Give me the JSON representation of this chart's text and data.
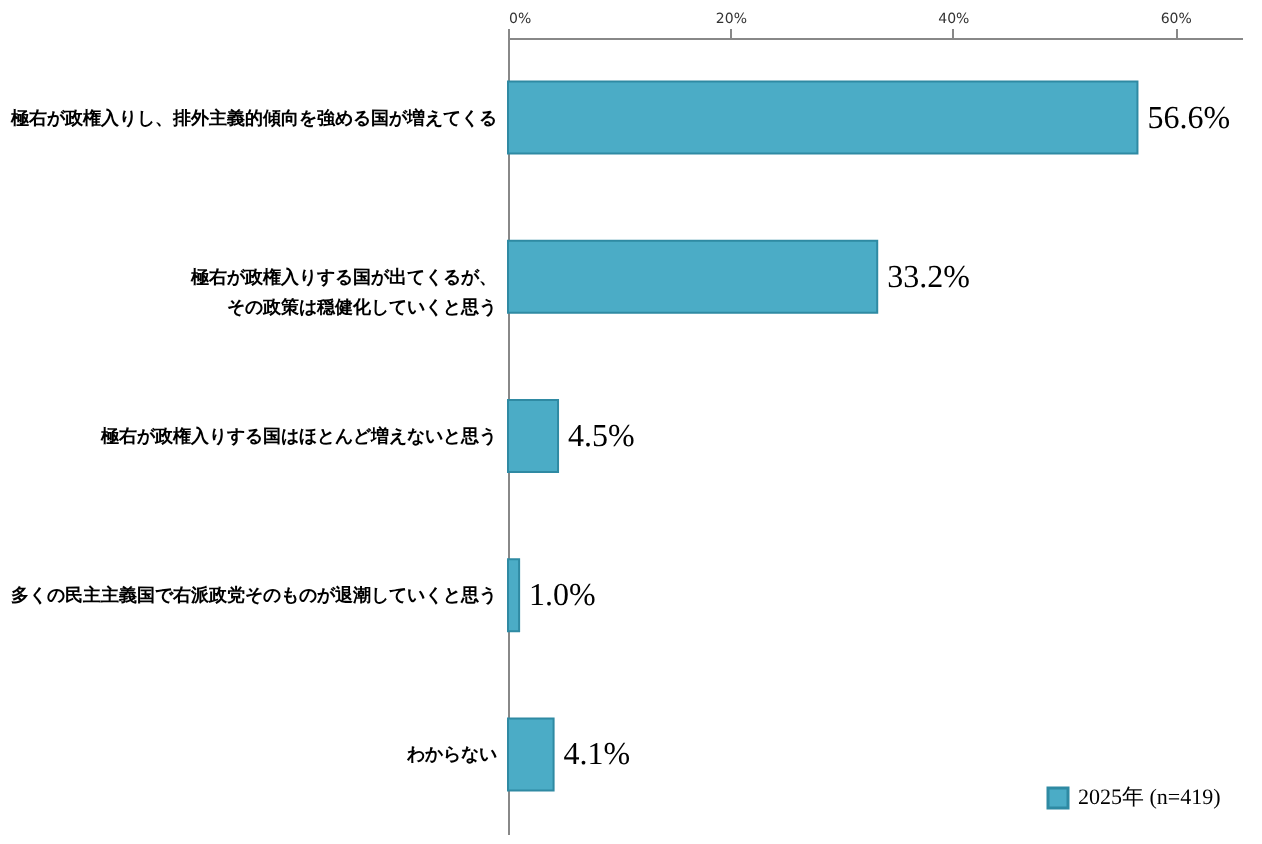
{
  "chart_data": {
    "type": "bar",
    "orientation": "horizontal",
    "categories": [
      "極右が政権入りし、排外主義的傾向を強める国が増えてくる",
      "極右が政権入りする国が出てくるが、その政策は穏健化していくと思う",
      "極右が政権入りする国はほとんど増えないと思う",
      "多くの民主主義国で右派政党そのものが退潮していくと思う",
      "わからない"
    ],
    "series": [
      {
        "name": "2025年 (n=419)",
        "color": "#4bacc6",
        "values": [
          56.6,
          33.2,
          4.5,
          1.0,
          4.1
        ],
        "value_labels": [
          "56.6%",
          "33.2%",
          "4.5%",
          "1.0%",
          "4.1%"
        ]
      }
    ],
    "xlim": [
      0,
      66
    ],
    "xticks": [
      {
        "value": 0,
        "label": "0%"
      },
      {
        "value": 20,
        "label": "20%"
      },
      {
        "value": 40,
        "label": "40%"
      },
      {
        "value": 60,
        "label": "60%"
      }
    ],
    "grid": false,
    "legend": "bottom right"
  }
}
